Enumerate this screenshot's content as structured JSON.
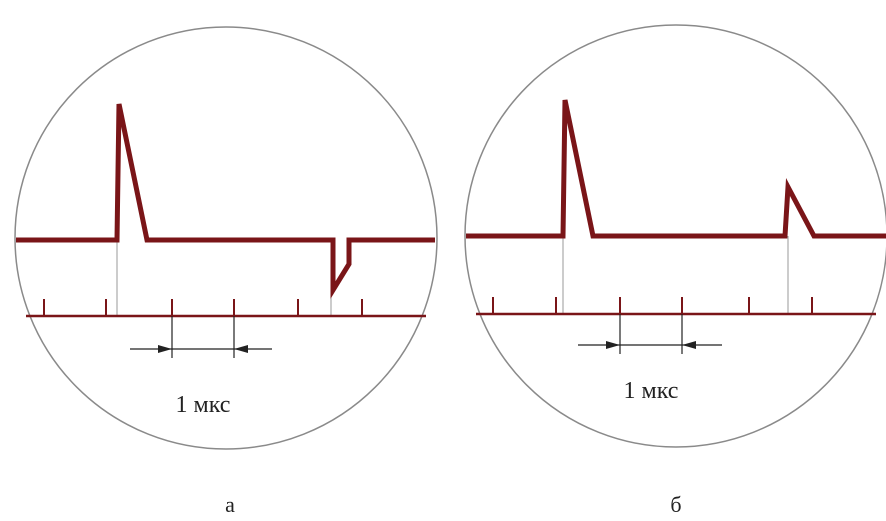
{
  "colors": {
    "signal": "#7a1518",
    "outline": "#8a8a8a",
    "marker": "#9a9a9a",
    "arrow": "#222222",
    "text": "#222222"
  },
  "panels": [
    {
      "caption": "а",
      "scale_label": "1 мкс"
    },
    {
      "caption": "б",
      "scale_label": "1 мкс"
    }
  ]
}
